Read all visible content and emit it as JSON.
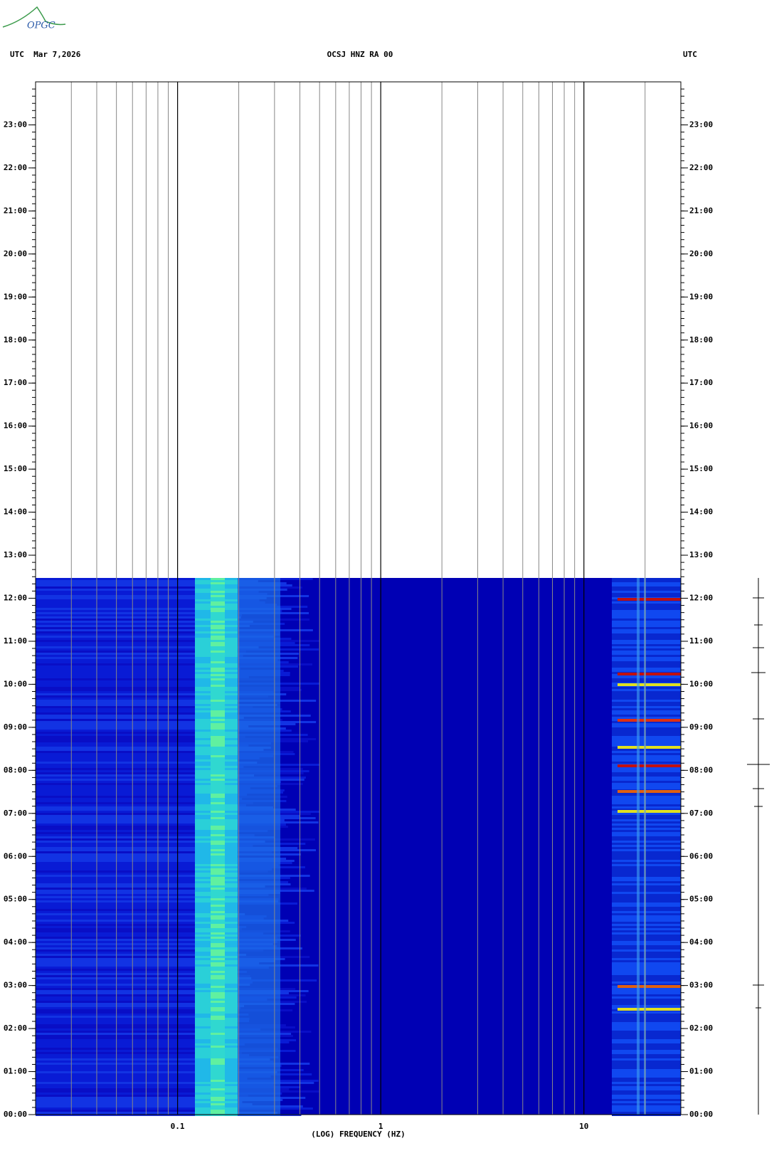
{
  "chart_data": {
    "type": "spectrogram",
    "logo": "OPGC",
    "left_header": "UTC  Mar 7,2026",
    "title": "OCSJ HNZ RA 00",
    "right_header": "UTC",
    "x_label": "(LOG) FREQUENCY (HZ)",
    "x_log": true,
    "xlim": [
      0.02,
      30
    ],
    "xticks": [
      0.1,
      1,
      10
    ],
    "ylim": [
      0,
      24
    ],
    "yticks": [
      {
        "value": 0,
        "label": "00:00"
      },
      {
        "value": 1,
        "label": "01:00"
      },
      {
        "value": 2,
        "label": "02:00"
      },
      {
        "value": 3,
        "label": "03:00"
      },
      {
        "value": 4,
        "label": "04:00"
      },
      {
        "value": 5,
        "label": "05:00"
      },
      {
        "value": 6,
        "label": "06:00"
      },
      {
        "value": 7,
        "label": "07:00"
      },
      {
        "value": 8,
        "label": "08:00"
      },
      {
        "value": 9,
        "label": "09:00"
      },
      {
        "value": 10,
        "label": "10:00"
      },
      {
        "value": 11,
        "label": "11:00"
      },
      {
        "value": 12,
        "label": "12:00"
      },
      {
        "value": 13,
        "label": "13:00"
      },
      {
        "value": 14,
        "label": "14:00"
      },
      {
        "value": 15,
        "label": "15:00"
      },
      {
        "value": 16,
        "label": "16:00"
      },
      {
        "value": 17,
        "label": "17:00"
      },
      {
        "value": 18,
        "label": "18:00"
      },
      {
        "value": 19,
        "label": "19:00"
      },
      {
        "value": 20,
        "label": "20:00"
      },
      {
        "value": 21,
        "label": "21:00"
      },
      {
        "value": 22,
        "label": "22:00"
      },
      {
        "value": 23,
        "label": "23:00"
      }
    ]
  }
}
